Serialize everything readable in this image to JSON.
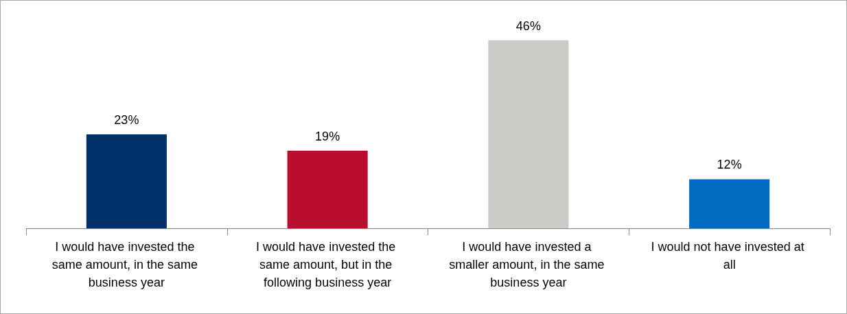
{
  "chart_data": {
    "type": "bar",
    "categories": [
      "I would have invested the same amount, in the same business year",
      "I would have invested the same amount, but in the following business year",
      "I would have invested a smaller amount, in the same business year",
      "I would not have invested at all"
    ],
    "values": [
      23,
      19,
      46,
      12
    ],
    "value_labels": [
      "23%",
      "19%",
      "46%",
      "12%"
    ],
    "colors": [
      "#003068",
      "#b90e30",
      "#cccac6",
      "#006bc0"
    ]
  }
}
